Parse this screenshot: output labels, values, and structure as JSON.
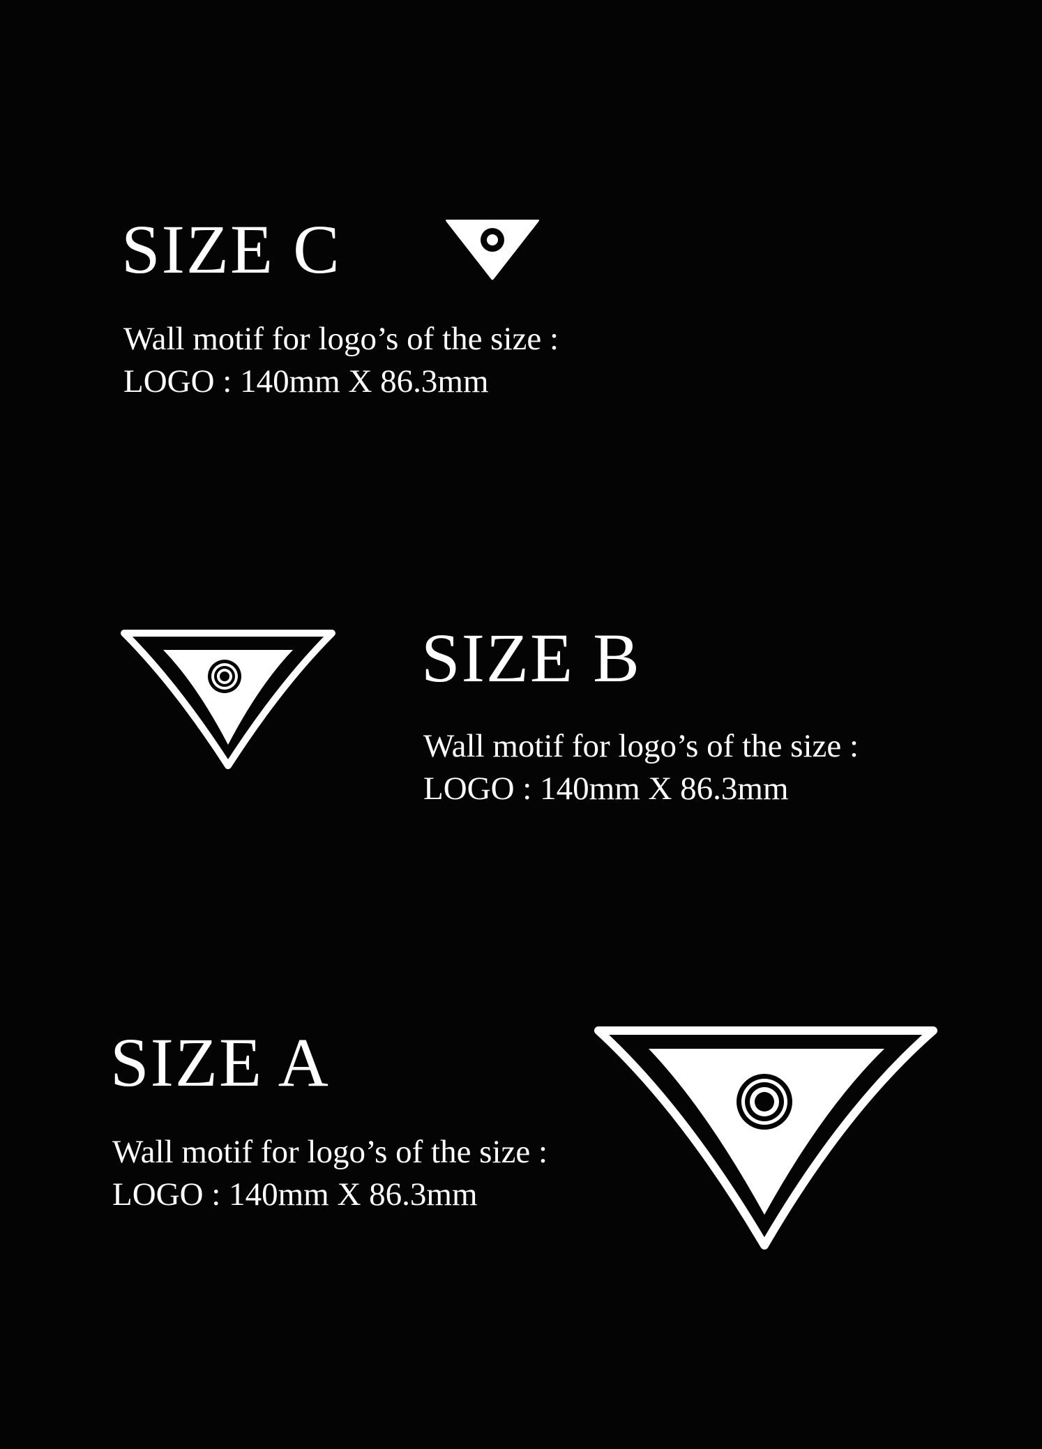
{
  "colors": {
    "background": "#040404",
    "foreground": "#ffffff"
  },
  "sections": [
    {
      "heading": "SIZE C",
      "line1": "Wall motif for logo’s of the size :",
      "line2": "LOGO : 140mm X 86.3mm",
      "motif": "triangle-eye-small-icon"
    },
    {
      "heading": "SIZE B",
      "line1": "Wall motif for logo’s of the size :",
      "line2": "LOGO : 140mm X 86.3mm",
      "motif": "triangle-eye-medium-icon"
    },
    {
      "heading": "SIZE A",
      "line1": "Wall motif for logo’s of the size :",
      "line2": "LOGO : 140mm X 86.3mm",
      "motif": "triangle-eye-large-icon"
    }
  ]
}
